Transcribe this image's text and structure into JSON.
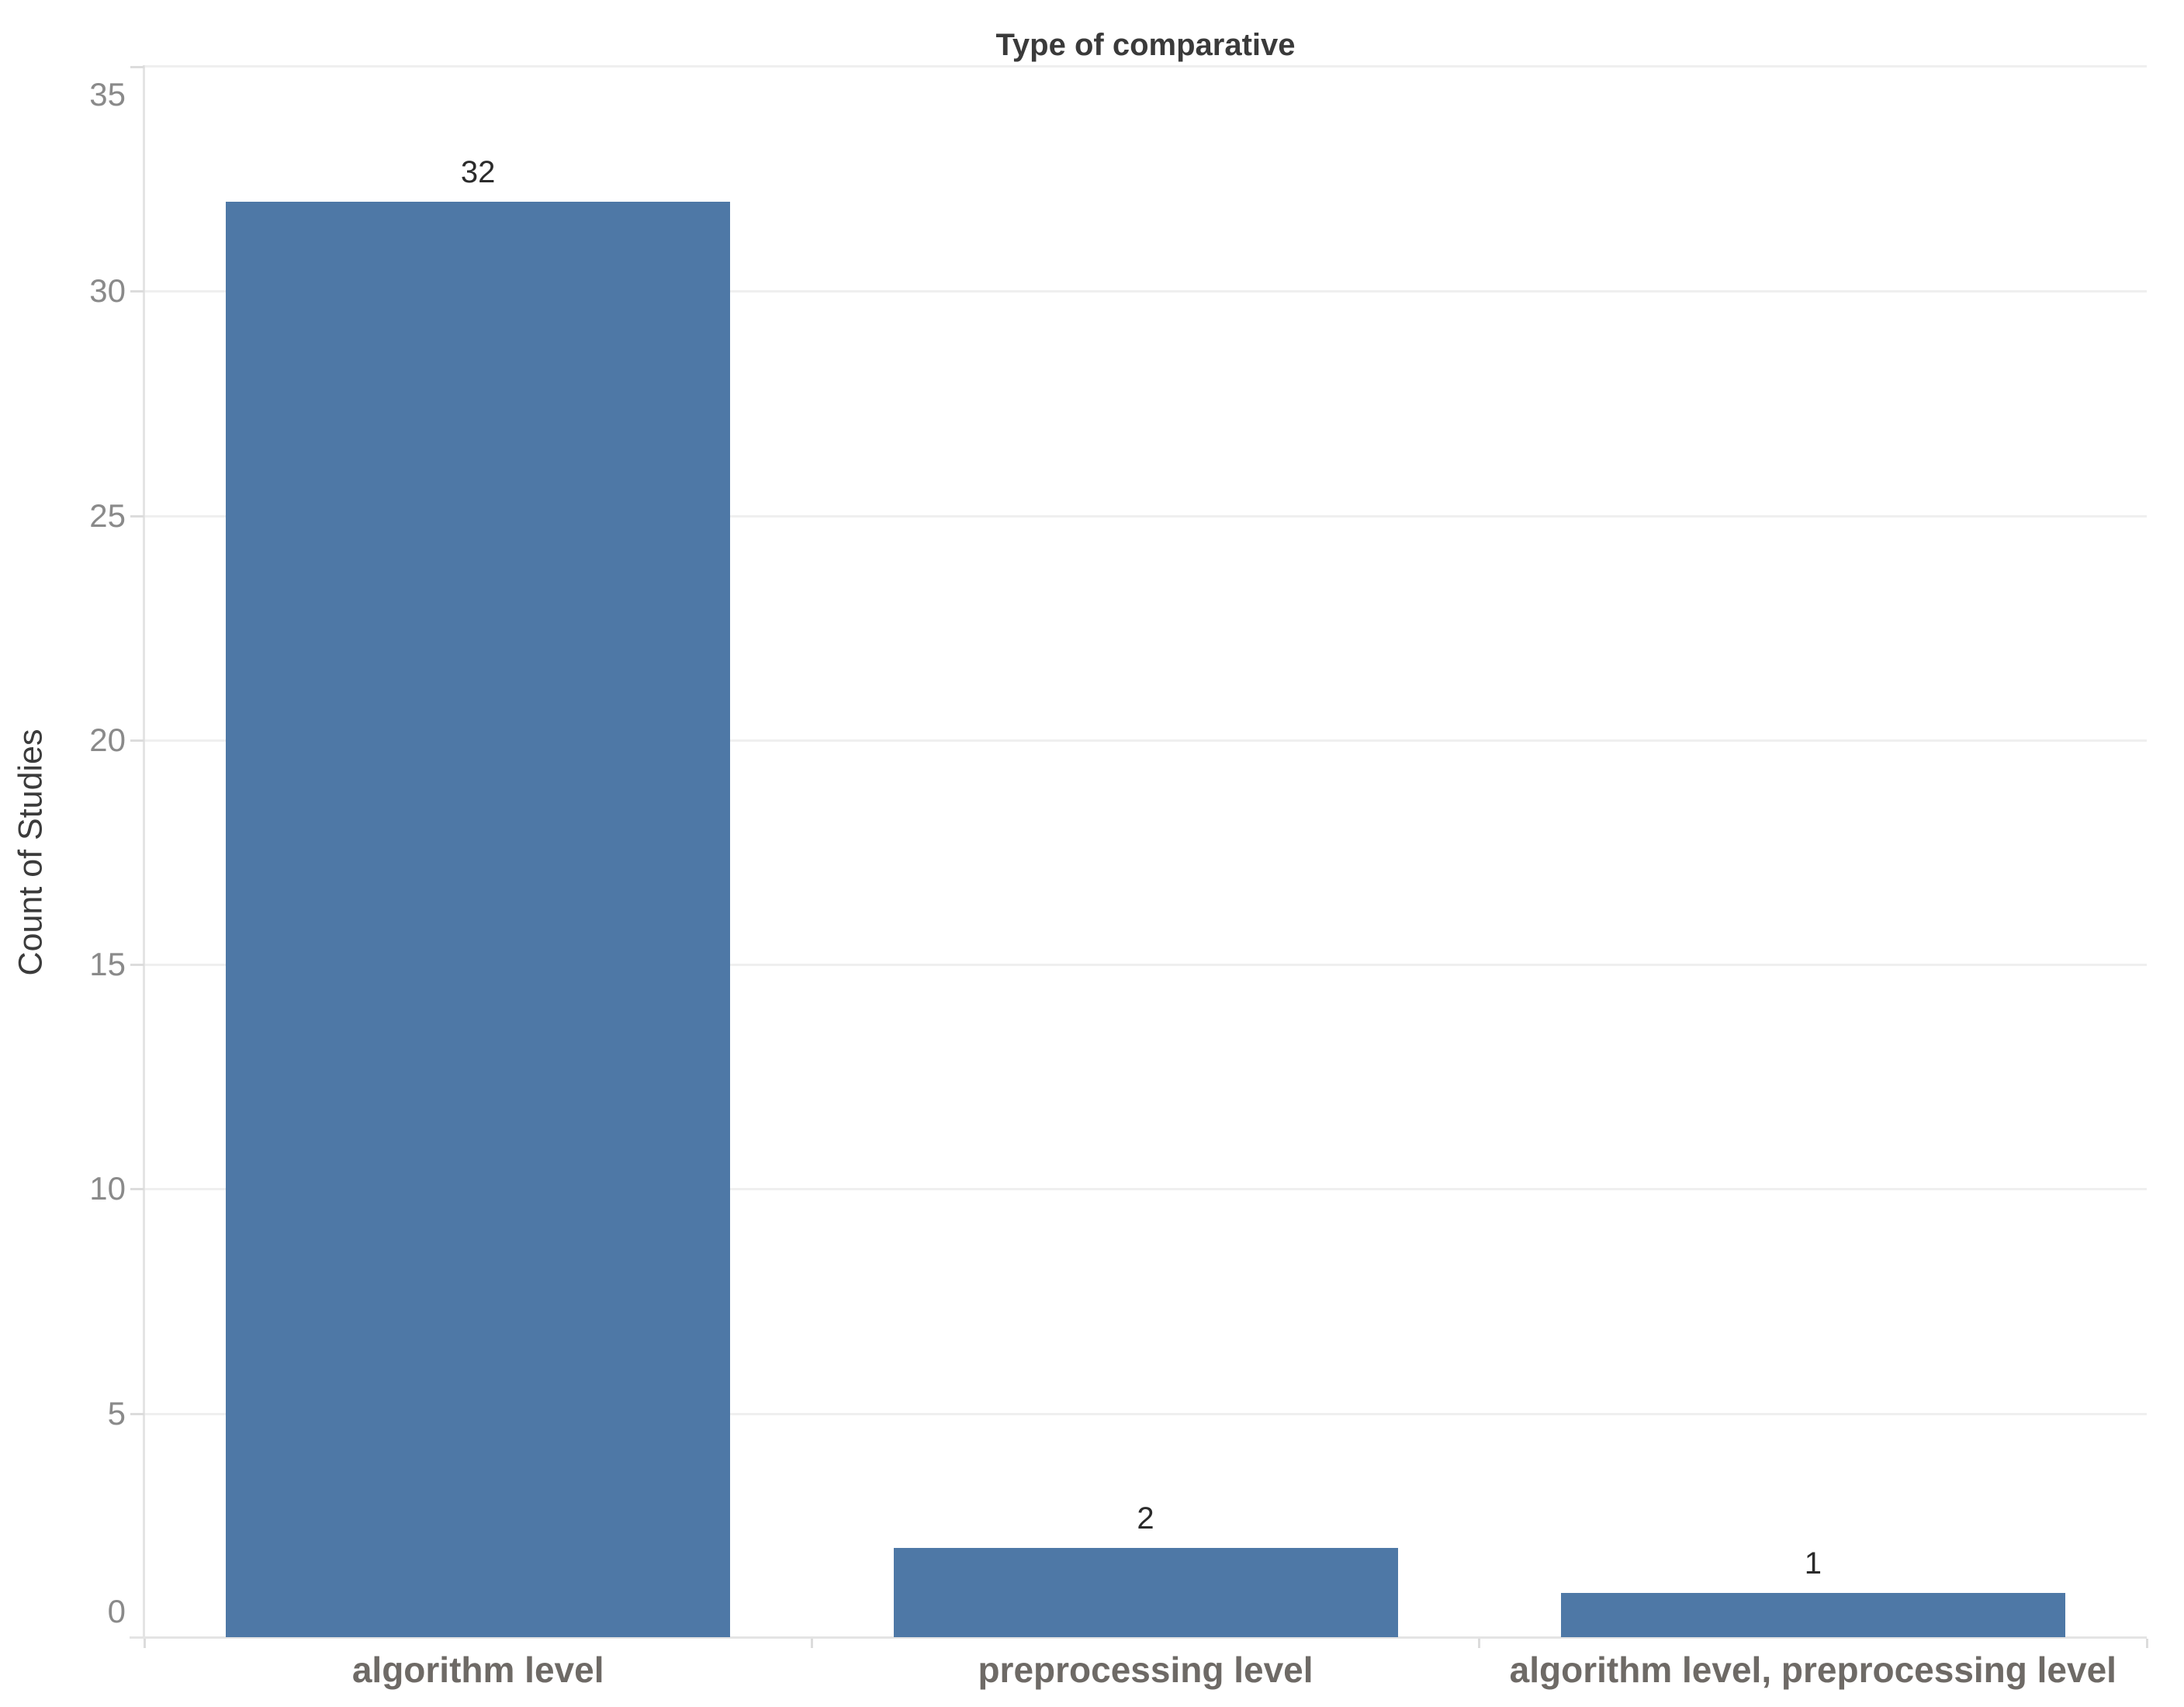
{
  "chart_data": {
    "type": "bar",
    "title": "Type of comparative",
    "ylabel": "Count of Studies",
    "xlabel": "",
    "categories": [
      "algorithm level",
      "preprocessing level",
      "algorithm level, preprocessing level"
    ],
    "values": [
      32,
      2,
      1
    ],
    "data_labels": [
      "32",
      "2",
      "1"
    ],
    "yticks": [
      0,
      5,
      10,
      15,
      20,
      25,
      30,
      35
    ],
    "ylim": [
      0,
      35
    ],
    "grid": "horizontal",
    "legend": "none",
    "colors": {
      "bar": "#4e78a6",
      "title_text": "#3a3a3a",
      "axis_title_text": "#3b3b3b",
      "tick_label_text": "#8a8a8a",
      "category_label_text": "#6e6a66",
      "data_label_text": "#2b2b2b",
      "gridline": "#efefef",
      "axis_line": "#e4e4e4",
      "tick_mark": "#dcdcdc",
      "background": "#ffffff"
    }
  }
}
